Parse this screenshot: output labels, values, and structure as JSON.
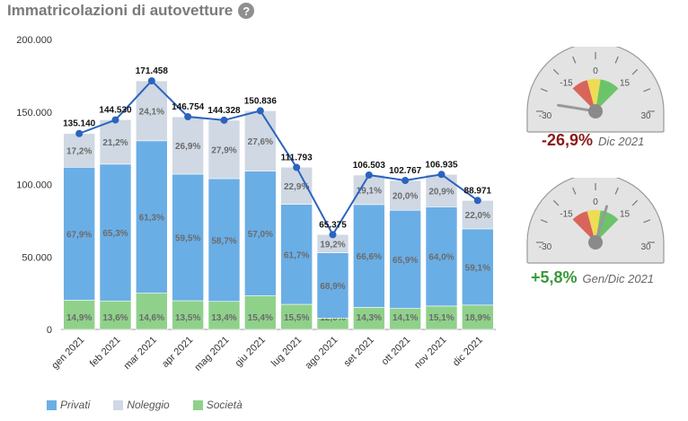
{
  "title": "Immatricolazioni di autovetture",
  "help_glyph": "?",
  "help_icon": "question-circle-icon",
  "colors": {
    "privati": "#6aaee6",
    "noleggio": "#cfd8e3",
    "societa": "#8fd18a",
    "line": "#2b63bf"
  },
  "chart_data": {
    "type": "bar",
    "stacked": true,
    "categories": [
      "gen 2021",
      "feb 2021",
      "mar 2021",
      "apr 2021",
      "mag 2021",
      "giu 2021",
      "lug 2021",
      "ago 2021",
      "set 2021",
      "ott 2021",
      "nov 2021",
      "dic 2021"
    ],
    "totals": [
      135140,
      144530,
      171458,
      146754,
      144328,
      150836,
      111793,
      65375,
      106503,
      102767,
      106935,
      88971
    ],
    "total_labels": [
      "135.140",
      "144.530",
      "171.458",
      "146.754",
      "144.328",
      "150.836",
      "111.793",
      "65.375",
      "106.503",
      "102.767",
      "106.935",
      "88.971"
    ],
    "series": [
      {
        "name": "Società",
        "share": [
          14.9,
          13.6,
          14.6,
          13.5,
          13.4,
          15.4,
          15.5,
          12.0,
          14.3,
          14.1,
          15.1,
          18.9
        ],
        "labels": [
          "14,9%",
          "13,6%",
          "14,6%",
          "13,5%",
          "13,4%",
          "15,4%",
          "15,5%",
          "12,0%",
          "14,3%",
          "14,1%",
          "15,1%",
          "18,9%"
        ]
      },
      {
        "name": "Privati",
        "share": [
          67.9,
          65.3,
          61.3,
          59.5,
          58.7,
          57.0,
          61.7,
          68.9,
          66.6,
          65.9,
          64.0,
          59.1
        ],
        "labels": [
          "67,9%",
          "65,3%",
          "61,3%",
          "59,5%",
          "58,7%",
          "57,0%",
          "61,7%",
          "68,9%",
          "66,6%",
          "65,9%",
          "64,0%",
          "59,1%"
        ]
      },
      {
        "name": "Noleggio",
        "share": [
          17.2,
          21.2,
          24.1,
          26.9,
          27.9,
          27.6,
          22.9,
          19.2,
          19.1,
          20.0,
          20.9,
          22.0
        ],
        "labels": [
          "17,2%",
          "21,2%",
          "24,1%",
          "26,9%",
          "27,9%",
          "27,6%",
          "22,9%",
          "19,2%",
          "19,1%",
          "20,0%",
          "20,9%",
          "22,0%"
        ]
      }
    ],
    "ylim": [
      0,
      200000
    ],
    "yticks": [
      0,
      50000,
      100000,
      150000,
      200000
    ],
    "ytick_labels": [
      "0",
      "50.000",
      "100.000",
      "150.000",
      "200.000"
    ],
    "grid": false,
    "legend_position": "bottom-left",
    "legend": [
      "Privati",
      "Noleggio",
      "Società"
    ]
  },
  "gauges": [
    {
      "value": -26.9,
      "value_label": "-26,9%",
      "period": "Dic 2021",
      "color": "#8b1a1a",
      "ticks": [
        "-30",
        "-15",
        "0",
        "15",
        "30"
      ],
      "min": -30,
      "max": 30
    },
    {
      "value": 5.8,
      "value_label": "+5,8%",
      "period": "Gen/Dic 2021",
      "color": "#3a9a3a",
      "ticks": [
        "-30",
        "-15",
        "0",
        "15",
        "30"
      ],
      "min": -30,
      "max": 30
    }
  ]
}
